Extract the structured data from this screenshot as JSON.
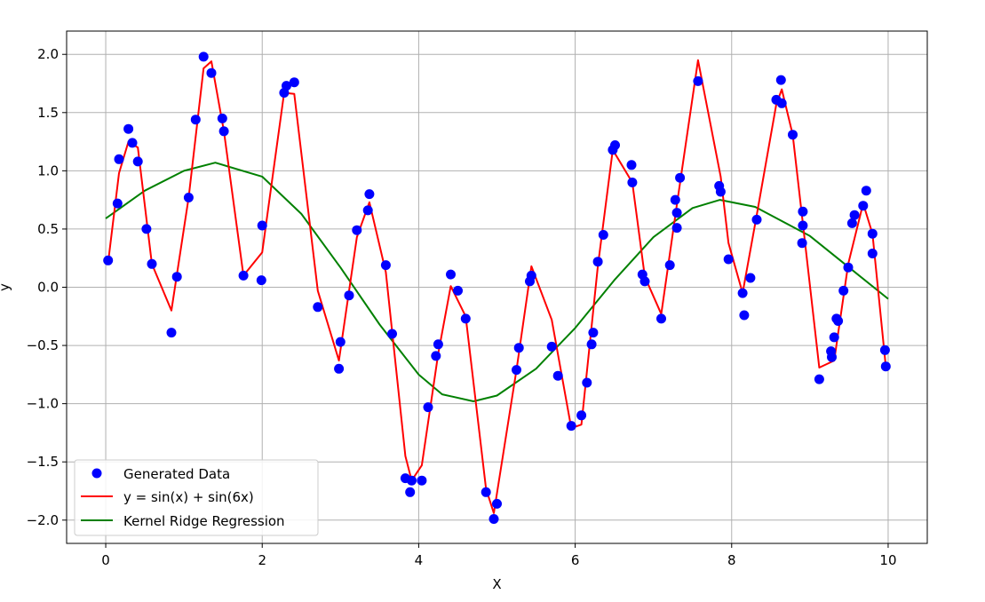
{
  "chart_data": {
    "type": "scatter",
    "title": "",
    "xlabel": "X",
    "ylabel": "y",
    "xlim": [
      -0.5,
      10.5
    ],
    "ylim": [
      -2.2,
      2.2
    ],
    "grid": true,
    "legend_position": "lower-left",
    "x_ticks": [
      0,
      2,
      4,
      6,
      8,
      10
    ],
    "x_tick_labels": [
      "0",
      "2",
      "4",
      "6",
      "8",
      "10"
    ],
    "y_ticks": [
      -2.0,
      -1.5,
      -1.0,
      -0.5,
      0.0,
      0.5,
      1.0,
      1.5,
      2.0
    ],
    "y_tick_labels": [
      "−2.0",
      "−1.5",
      "−1.0",
      "−0.5",
      "0.0",
      "0.5",
      "1.0",
      "1.5",
      "2.0"
    ],
    "series": [
      {
        "name": "Generated Data",
        "kind": "scatter",
        "color": "#0000ff",
        "points": [
          [
            0.03,
            0.23
          ],
          [
            0.15,
            0.72
          ],
          [
            0.17,
            1.1
          ],
          [
            0.29,
            1.36
          ],
          [
            0.34,
            1.24
          ],
          [
            0.41,
            1.08
          ],
          [
            0.52,
            0.5
          ],
          [
            0.59,
            0.2
          ],
          [
            0.84,
            -0.39
          ],
          [
            0.91,
            0.09
          ],
          [
            1.06,
            0.77
          ],
          [
            1.15,
            1.44
          ],
          [
            1.25,
            1.98
          ],
          [
            1.35,
            1.84
          ],
          [
            1.49,
            1.45
          ],
          [
            1.51,
            1.34
          ],
          [
            1.76,
            0.1
          ],
          [
            1.99,
            0.06
          ],
          [
            2.0,
            0.53
          ],
          [
            2.28,
            1.67
          ],
          [
            2.31,
            1.73
          ],
          [
            2.41,
            1.76
          ],
          [
            2.71,
            -0.17
          ],
          [
            2.98,
            -0.7
          ],
          [
            3.0,
            -0.47
          ],
          [
            3.11,
            -0.07
          ],
          [
            3.21,
            0.49
          ],
          [
            3.35,
            0.66
          ],
          [
            3.37,
            0.8
          ],
          [
            3.58,
            0.19
          ],
          [
            3.66,
            -0.4
          ],
          [
            3.83,
            -1.64
          ],
          [
            3.89,
            -1.76
          ],
          [
            3.91,
            -1.66
          ],
          [
            4.04,
            -1.66
          ],
          [
            4.12,
            -1.03
          ],
          [
            4.22,
            -0.59
          ],
          [
            4.25,
            -0.49
          ],
          [
            4.41,
            0.11
          ],
          [
            4.5,
            -0.03
          ],
          [
            4.6,
            -0.27
          ],
          [
            4.86,
            -1.76
          ],
          [
            4.96,
            -1.99
          ],
          [
            5.0,
            -1.86
          ],
          [
            5.25,
            -0.71
          ],
          [
            5.28,
            -0.52
          ],
          [
            5.42,
            0.05
          ],
          [
            5.44,
            0.1
          ],
          [
            5.7,
            -0.51
          ],
          [
            5.78,
            -0.76
          ],
          [
            5.95,
            -1.19
          ],
          [
            6.08,
            -1.1
          ],
          [
            6.15,
            -0.82
          ],
          [
            6.21,
            -0.49
          ],
          [
            6.23,
            -0.39
          ],
          [
            6.29,
            0.22
          ],
          [
            6.36,
            0.45
          ],
          [
            6.48,
            1.18
          ],
          [
            6.51,
            1.22
          ],
          [
            6.72,
            1.05
          ],
          [
            6.73,
            0.9
          ],
          [
            6.86,
            0.11
          ],
          [
            6.89,
            0.05
          ],
          [
            7.1,
            -0.27
          ],
          [
            7.21,
            0.19
          ],
          [
            7.28,
            0.75
          ],
          [
            7.3,
            0.64
          ],
          [
            7.3,
            0.51
          ],
          [
            7.34,
            0.94
          ],
          [
            7.57,
            1.77
          ],
          [
            7.84,
            0.87
          ],
          [
            7.86,
            0.82
          ],
          [
            7.96,
            0.24
          ],
          [
            8.14,
            -0.05
          ],
          [
            8.16,
            -0.24
          ],
          [
            8.24,
            0.08
          ],
          [
            8.32,
            0.58
          ],
          [
            8.57,
            1.61
          ],
          [
            8.63,
            1.78
          ],
          [
            8.64,
            1.58
          ],
          [
            8.78,
            1.31
          ],
          [
            8.91,
            0.65
          ],
          [
            8.91,
            0.53
          ],
          [
            8.9,
            0.38
          ],
          [
            9.12,
            -0.79
          ],
          [
            9.27,
            -0.55
          ],
          [
            9.28,
            -0.6
          ],
          [
            9.31,
            -0.43
          ],
          [
            9.34,
            -0.27
          ],
          [
            9.36,
            -0.29
          ],
          [
            9.43,
            -0.03
          ],
          [
            9.49,
            0.17
          ],
          [
            9.54,
            0.55
          ],
          [
            9.57,
            0.62
          ],
          [
            9.68,
            0.7
          ],
          [
            9.72,
            0.83
          ],
          [
            9.8,
            0.46
          ],
          [
            9.8,
            0.29
          ],
          [
            9.96,
            -0.54
          ],
          [
            9.97,
            -0.68
          ]
        ]
      },
      {
        "name": "y = sin(x) + sin(6x)",
        "kind": "line",
        "color": "#ff0000",
        "points": [
          [
            0.03,
            0.21
          ],
          [
            0.17,
            0.98
          ],
          [
            0.29,
            1.25
          ],
          [
            0.41,
            1.2
          ],
          [
            0.59,
            0.2
          ],
          [
            0.84,
            -0.2
          ],
          [
            1.06,
            0.77
          ],
          [
            1.25,
            1.88
          ],
          [
            1.35,
            1.94
          ],
          [
            1.51,
            1.34
          ],
          [
            1.76,
            0.1
          ],
          [
            2.0,
            0.3
          ],
          [
            2.28,
            1.67
          ],
          [
            2.41,
            1.66
          ],
          [
            2.71,
            -0.03
          ],
          [
            2.98,
            -0.63
          ],
          [
            3.21,
            0.43
          ],
          [
            3.37,
            0.73
          ],
          [
            3.58,
            0.13
          ],
          [
            3.83,
            -1.45
          ],
          [
            3.91,
            -1.66
          ],
          [
            4.04,
            -1.53
          ],
          [
            4.25,
            -0.57
          ],
          [
            4.41,
            0.01
          ],
          [
            4.6,
            -0.25
          ],
          [
            4.86,
            -1.73
          ],
          [
            4.96,
            -1.94
          ],
          [
            5.25,
            -0.71
          ],
          [
            5.44,
            0.18
          ],
          [
            5.7,
            -0.28
          ],
          [
            5.95,
            -1.21
          ],
          [
            6.08,
            -1.18
          ],
          [
            6.29,
            0.18
          ],
          [
            6.48,
            1.18
          ],
          [
            6.73,
            0.9
          ],
          [
            6.89,
            0.09
          ],
          [
            7.1,
            -0.23
          ],
          [
            7.3,
            0.71
          ],
          [
            7.57,
            1.95
          ],
          [
            7.86,
            0.95
          ],
          [
            7.96,
            0.38
          ],
          [
            8.14,
            -0.05
          ],
          [
            8.32,
            0.62
          ],
          [
            8.57,
            1.57
          ],
          [
            8.64,
            1.7
          ],
          [
            8.78,
            1.31
          ],
          [
            8.91,
            0.55
          ],
          [
            9.12,
            -0.69
          ],
          [
            9.31,
            -0.63
          ],
          [
            9.49,
            0.2
          ],
          [
            9.68,
            0.72
          ],
          [
            9.8,
            0.46
          ],
          [
            9.97,
            -0.68
          ]
        ]
      },
      {
        "name": "Kernel Ridge Regression",
        "kind": "line",
        "color": "#008000",
        "points": [
          [
            0.0,
            0.59
          ],
          [
            0.5,
            0.83
          ],
          [
            1.0,
            1.0
          ],
          [
            1.4,
            1.07
          ],
          [
            2.0,
            0.95
          ],
          [
            2.5,
            0.63
          ],
          [
            3.0,
            0.17
          ],
          [
            3.5,
            -0.32
          ],
          [
            4.0,
            -0.75
          ],
          [
            4.3,
            -0.92
          ],
          [
            4.7,
            -0.98
          ],
          [
            5.0,
            -0.93
          ],
          [
            5.5,
            -0.7
          ],
          [
            6.0,
            -0.35
          ],
          [
            6.5,
            0.06
          ],
          [
            7.0,
            0.43
          ],
          [
            7.5,
            0.68
          ],
          [
            7.85,
            0.75
          ],
          [
            8.3,
            0.69
          ],
          [
            9.0,
            0.44
          ],
          [
            9.5,
            0.17
          ],
          [
            10.0,
            -0.1
          ]
        ]
      }
    ]
  }
}
